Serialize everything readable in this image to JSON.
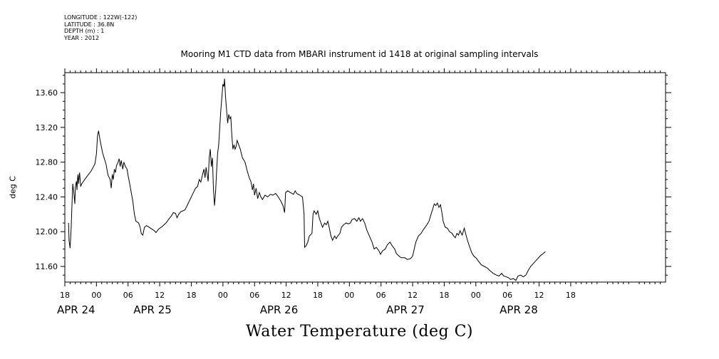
{
  "metadata": {
    "longitude": "LONGITUDE : 122W(-122)",
    "latitude": "LATITUDE : 36.8N",
    "depth": "DEPTH (m) : 1",
    "year": "YEAR : 2012"
  },
  "chart_data": {
    "type": "line",
    "title": "Mooring M1 CTD data from MBARI instrument id 1418 at original sampling intervals",
    "ylabel": "deg C",
    "xlabel": "Water Temperature (deg C)",
    "x_units": "hours since APR 24 00:00 (2012)",
    "xlim": [
      -6,
      108
    ],
    "ylim": [
      11.42,
      13.83
    ],
    "yticks": [
      11.6,
      12.0,
      12.4,
      12.8,
      13.2,
      13.6
    ],
    "ytick_labels": [
      "11.60",
      "12.00",
      "12.40",
      "12.80",
      "13.20",
      "13.60"
    ],
    "xticks": [
      {
        "x": -6,
        "label": "18"
      },
      {
        "x": 0,
        "label": "00"
      },
      {
        "x": 6,
        "label": "06"
      },
      {
        "x": 12,
        "label": "12"
      },
      {
        "x": 18,
        "label": "18"
      },
      {
        "x": 24,
        "label": "00"
      },
      {
        "x": 30,
        "label": "06"
      },
      {
        "x": 36,
        "label": "12"
      },
      {
        "x": 42,
        "label": "18"
      },
      {
        "x": 48,
        "label": "00"
      },
      {
        "x": 54,
        "label": "06"
      },
      {
        "x": 60,
        "label": "12"
      },
      {
        "x": 66,
        "label": "18"
      },
      {
        "x": 72,
        "label": "00"
      },
      {
        "x": 78,
        "label": "06"
      },
      {
        "x": 84,
        "label": "12"
      },
      {
        "x": 90,
        "label": "18"
      }
    ],
    "date_labels": [
      {
        "x": -6,
        "label": "APR 24"
      },
      {
        "x": 8.5,
        "label": "APR 25"
      },
      {
        "x": 32.5,
        "label": "APR 26"
      },
      {
        "x": 56.5,
        "label": "APR 27"
      },
      {
        "x": 78,
        "label": "APR 28"
      }
    ],
    "series": [
      {
        "values": [
          [
            -5.3,
            12.1
          ],
          [
            -5.2,
            11.9
          ],
          [
            -5.0,
            11.81
          ],
          [
            -4.8,
            12.05
          ],
          [
            -4.6,
            12.4
          ],
          [
            -4.5,
            12.55
          ],
          [
            -4.3,
            12.45
          ],
          [
            -4.1,
            12.32
          ],
          [
            -4.0,
            12.52
          ],
          [
            -3.8,
            12.58
          ],
          [
            -3.7,
            12.48
          ],
          [
            -3.6,
            12.6
          ],
          [
            -3.5,
            12.66
          ],
          [
            -3.4,
            12.55
          ],
          [
            -3.3,
            12.62
          ],
          [
            -3.2,
            12.68
          ],
          [
            -3.0,
            12.52
          ],
          [
            -2.8,
            12.55
          ],
          [
            -2.0,
            12.62
          ],
          [
            -1.0,
            12.7
          ],
          [
            -0.3,
            12.78
          ],
          [
            0.0,
            12.9
          ],
          [
            0.2,
            13.1
          ],
          [
            0.4,
            13.16
          ],
          [
            0.7,
            13.05
          ],
          [
            1.2,
            12.9
          ],
          [
            1.8,
            12.78
          ],
          [
            2.2,
            12.65
          ],
          [
            2.6,
            12.6
          ],
          [
            2.8,
            12.5
          ],
          [
            3.0,
            12.66
          ],
          [
            3.2,
            12.6
          ],
          [
            3.4,
            12.72
          ],
          [
            3.6,
            12.68
          ],
          [
            3.8,
            12.76
          ],
          [
            4.1,
            12.8
          ],
          [
            4.3,
            12.84
          ],
          [
            4.5,
            12.75
          ],
          [
            4.7,
            12.82
          ],
          [
            5.0,
            12.72
          ],
          [
            5.2,
            12.8
          ],
          [
            5.5,
            12.75
          ],
          [
            5.8,
            12.72
          ],
          [
            6.0,
            12.65
          ],
          [
            6.3,
            12.55
          ],
          [
            6.6,
            12.45
          ],
          [
            6.9,
            12.35
          ],
          [
            7.2,
            12.2
          ],
          [
            7.5,
            12.12
          ],
          [
            8.0,
            12.1
          ],
          [
            8.3,
            12.05
          ],
          [
            8.5,
            11.98
          ],
          [
            8.8,
            11.96
          ],
          [
            9.1,
            12.05
          ],
          [
            9.5,
            12.07
          ],
          [
            10.0,
            12.05
          ],
          [
            10.5,
            12.03
          ],
          [
            11.0,
            12.01
          ],
          [
            11.3,
            11.99
          ],
          [
            11.8,
            12.03
          ],
          [
            12.5,
            12.06
          ],
          [
            13.2,
            12.1
          ],
          [
            13.8,
            12.15
          ],
          [
            14.2,
            12.18
          ],
          [
            14.6,
            12.22
          ],
          [
            15.0,
            12.21
          ],
          [
            15.3,
            12.16
          ],
          [
            15.6,
            12.2
          ],
          [
            16.0,
            12.23
          ],
          [
            16.8,
            12.25
          ],
          [
            17.2,
            12.3
          ],
          [
            17.6,
            12.35
          ],
          [
            18.0,
            12.4
          ],
          [
            18.4,
            12.45
          ],
          [
            18.8,
            12.5
          ],
          [
            19.2,
            12.52
          ],
          [
            19.5,
            12.6
          ],
          [
            19.8,
            12.57
          ],
          [
            20.1,
            12.65
          ],
          [
            20.4,
            12.72
          ],
          [
            20.6,
            12.62
          ],
          [
            20.8,
            12.74
          ],
          [
            21.0,
            12.66
          ],
          [
            21.2,
            12.58
          ],
          [
            21.4,
            12.85
          ],
          [
            21.6,
            12.95
          ],
          [
            21.8,
            12.75
          ],
          [
            22.0,
            12.85
          ],
          [
            22.2,
            12.5
          ],
          [
            22.4,
            12.3
          ],
          [
            22.6,
            12.45
          ],
          [
            22.8,
            12.7
          ],
          [
            23.0,
            12.9
          ],
          [
            23.2,
            13.0
          ],
          [
            23.4,
            13.2
          ],
          [
            23.6,
            13.4
          ],
          [
            23.8,
            13.55
          ],
          [
            24.0,
            13.7
          ],
          [
            24.2,
            13.67
          ],
          [
            24.3,
            13.76
          ],
          [
            24.5,
            13.55
          ],
          [
            24.7,
            13.4
          ],
          [
            24.9,
            13.25
          ],
          [
            25.1,
            13.35
          ],
          [
            25.3,
            13.3
          ],
          [
            25.5,
            13.32
          ],
          [
            25.7,
            13.1
          ],
          [
            25.9,
            12.95
          ],
          [
            26.1,
            13.0
          ],
          [
            26.3,
            12.95
          ],
          [
            26.5,
            12.98
          ],
          [
            26.7,
            13.05
          ],
          [
            27.0,
            13.0
          ],
          [
            27.3,
            12.95
          ],
          [
            27.7,
            12.85
          ],
          [
            28.2,
            12.8
          ],
          [
            28.6,
            12.7
          ],
          [
            29.0,
            12.62
          ],
          [
            29.3,
            12.58
          ],
          [
            29.6,
            12.48
          ],
          [
            29.8,
            12.55
          ],
          [
            30.0,
            12.42
          ],
          [
            30.3,
            12.5
          ],
          [
            30.6,
            12.38
          ],
          [
            30.9,
            12.45
          ],
          [
            31.2,
            12.4
          ],
          [
            31.5,
            12.37
          ],
          [
            32.0,
            12.42
          ],
          [
            32.5,
            12.4
          ],
          [
            33.0,
            12.43
          ],
          [
            33.5,
            12.42
          ],
          [
            34.0,
            12.44
          ],
          [
            34.5,
            12.4
          ],
          [
            35.0,
            12.35
          ],
          [
            35.4,
            12.3
          ],
          [
            35.7,
            12.22
          ],
          [
            35.9,
            12.45
          ],
          [
            36.3,
            12.47
          ],
          [
            36.8,
            12.45
          ],
          [
            37.4,
            12.43
          ],
          [
            37.7,
            12.47
          ],
          [
            38.0,
            12.44
          ],
          [
            38.6,
            12.42
          ],
          [
            39.1,
            12.4
          ],
          [
            39.4,
            12.2
          ],
          [
            39.5,
            11.82
          ],
          [
            39.8,
            11.84
          ],
          [
            40.1,
            11.88
          ],
          [
            40.4,
            11.95
          ],
          [
            40.9,
            11.98
          ],
          [
            41.1,
            12.2
          ],
          [
            41.3,
            12.24
          ],
          [
            41.7,
            12.2
          ],
          [
            42.0,
            12.24
          ],
          [
            42.3,
            12.15
          ],
          [
            42.6,
            12.1
          ],
          [
            42.9,
            12.05
          ],
          [
            43.3,
            12.1
          ],
          [
            43.6,
            12.08
          ],
          [
            43.9,
            12.12
          ],
          [
            44.2,
            12.04
          ],
          [
            44.5,
            11.95
          ],
          [
            44.8,
            11.9
          ],
          [
            45.2,
            11.95
          ],
          [
            45.5,
            11.92
          ],
          [
            45.8,
            11.95
          ],
          [
            46.2,
            11.98
          ],
          [
            46.5,
            12.05
          ],
          [
            46.9,
            12.08
          ],
          [
            47.4,
            12.1
          ],
          [
            47.8,
            12.09
          ],
          [
            48.2,
            12.1
          ],
          [
            48.5,
            12.14
          ],
          [
            49.0,
            12.15
          ],
          [
            49.4,
            12.12
          ],
          [
            49.8,
            12.16
          ],
          [
            50.1,
            12.12
          ],
          [
            50.5,
            12.15
          ],
          [
            50.9,
            12.1
          ],
          [
            51.3,
            12.02
          ],
          [
            51.8,
            11.95
          ],
          [
            52.3,
            11.88
          ],
          [
            52.7,
            11.8
          ],
          [
            53.1,
            11.82
          ],
          [
            53.6,
            11.78
          ],
          [
            53.9,
            11.74
          ],
          [
            54.3,
            11.78
          ],
          [
            54.8,
            11.8
          ],
          [
            55.2,
            11.85
          ],
          [
            55.7,
            11.88
          ],
          [
            56.1,
            11.84
          ],
          [
            56.6,
            11.8
          ],
          [
            56.9,
            11.75
          ],
          [
            57.4,
            11.72
          ],
          [
            57.8,
            11.7
          ],
          [
            58.5,
            11.7
          ],
          [
            59.0,
            11.68
          ],
          [
            59.6,
            11.69
          ],
          [
            60.0,
            11.72
          ],
          [
            60.3,
            11.8
          ],
          [
            60.6,
            11.88
          ],
          [
            61.1,
            11.95
          ],
          [
            61.6,
            11.98
          ],
          [
            62.0,
            12.02
          ],
          [
            62.6,
            12.07
          ],
          [
            63.1,
            12.12
          ],
          [
            63.5,
            12.2
          ],
          [
            63.8,
            12.26
          ],
          [
            64.1,
            12.32
          ],
          [
            64.4,
            12.3
          ],
          [
            64.7,
            12.33
          ],
          [
            65.0,
            12.28
          ],
          [
            65.3,
            12.31
          ],
          [
            65.6,
            12.2
          ],
          [
            65.8,
            12.12
          ],
          [
            66.2,
            12.05
          ],
          [
            66.6,
            12.04
          ],
          [
            67.0,
            12.0
          ],
          [
            67.5,
            11.98
          ],
          [
            67.8,
            11.95
          ],
          [
            68.1,
            11.93
          ],
          [
            68.4,
            11.98
          ],
          [
            68.7,
            11.96
          ],
          [
            69.0,
            12.01
          ],
          [
            69.4,
            11.96
          ],
          [
            69.8,
            12.04
          ],
          [
            70.1,
            11.97
          ],
          [
            70.4,
            11.9
          ],
          [
            70.8,
            11.83
          ],
          [
            71.2,
            11.76
          ],
          [
            71.6,
            11.72
          ],
          [
            72.0,
            11.7
          ],
          [
            72.5,
            11.66
          ],
          [
            73.0,
            11.62
          ],
          [
            73.6,
            11.6
          ],
          [
            74.2,
            11.58
          ],
          [
            74.7,
            11.55
          ],
          [
            75.3,
            11.52
          ],
          [
            75.9,
            11.5
          ],
          [
            76.4,
            11.49
          ],
          [
            76.9,
            11.52
          ],
          [
            77.3,
            11.49
          ],
          [
            77.8,
            11.48
          ],
          [
            78.2,
            11.47
          ],
          [
            78.6,
            11.45
          ],
          [
            79.1,
            11.46
          ],
          [
            79.6,
            11.44
          ],
          [
            80.0,
            11.49
          ],
          [
            80.5,
            11.5
          ],
          [
            81.0,
            11.48
          ],
          [
            81.5,
            11.5
          ],
          [
            81.9,
            11.55
          ],
          [
            82.4,
            11.6
          ],
          [
            83.0,
            11.64
          ],
          [
            83.6,
            11.68
          ],
          [
            84.2,
            11.72
          ],
          [
            84.8,
            11.75
          ],
          [
            85.2,
            11.77
          ]
        ]
      }
    ]
  }
}
